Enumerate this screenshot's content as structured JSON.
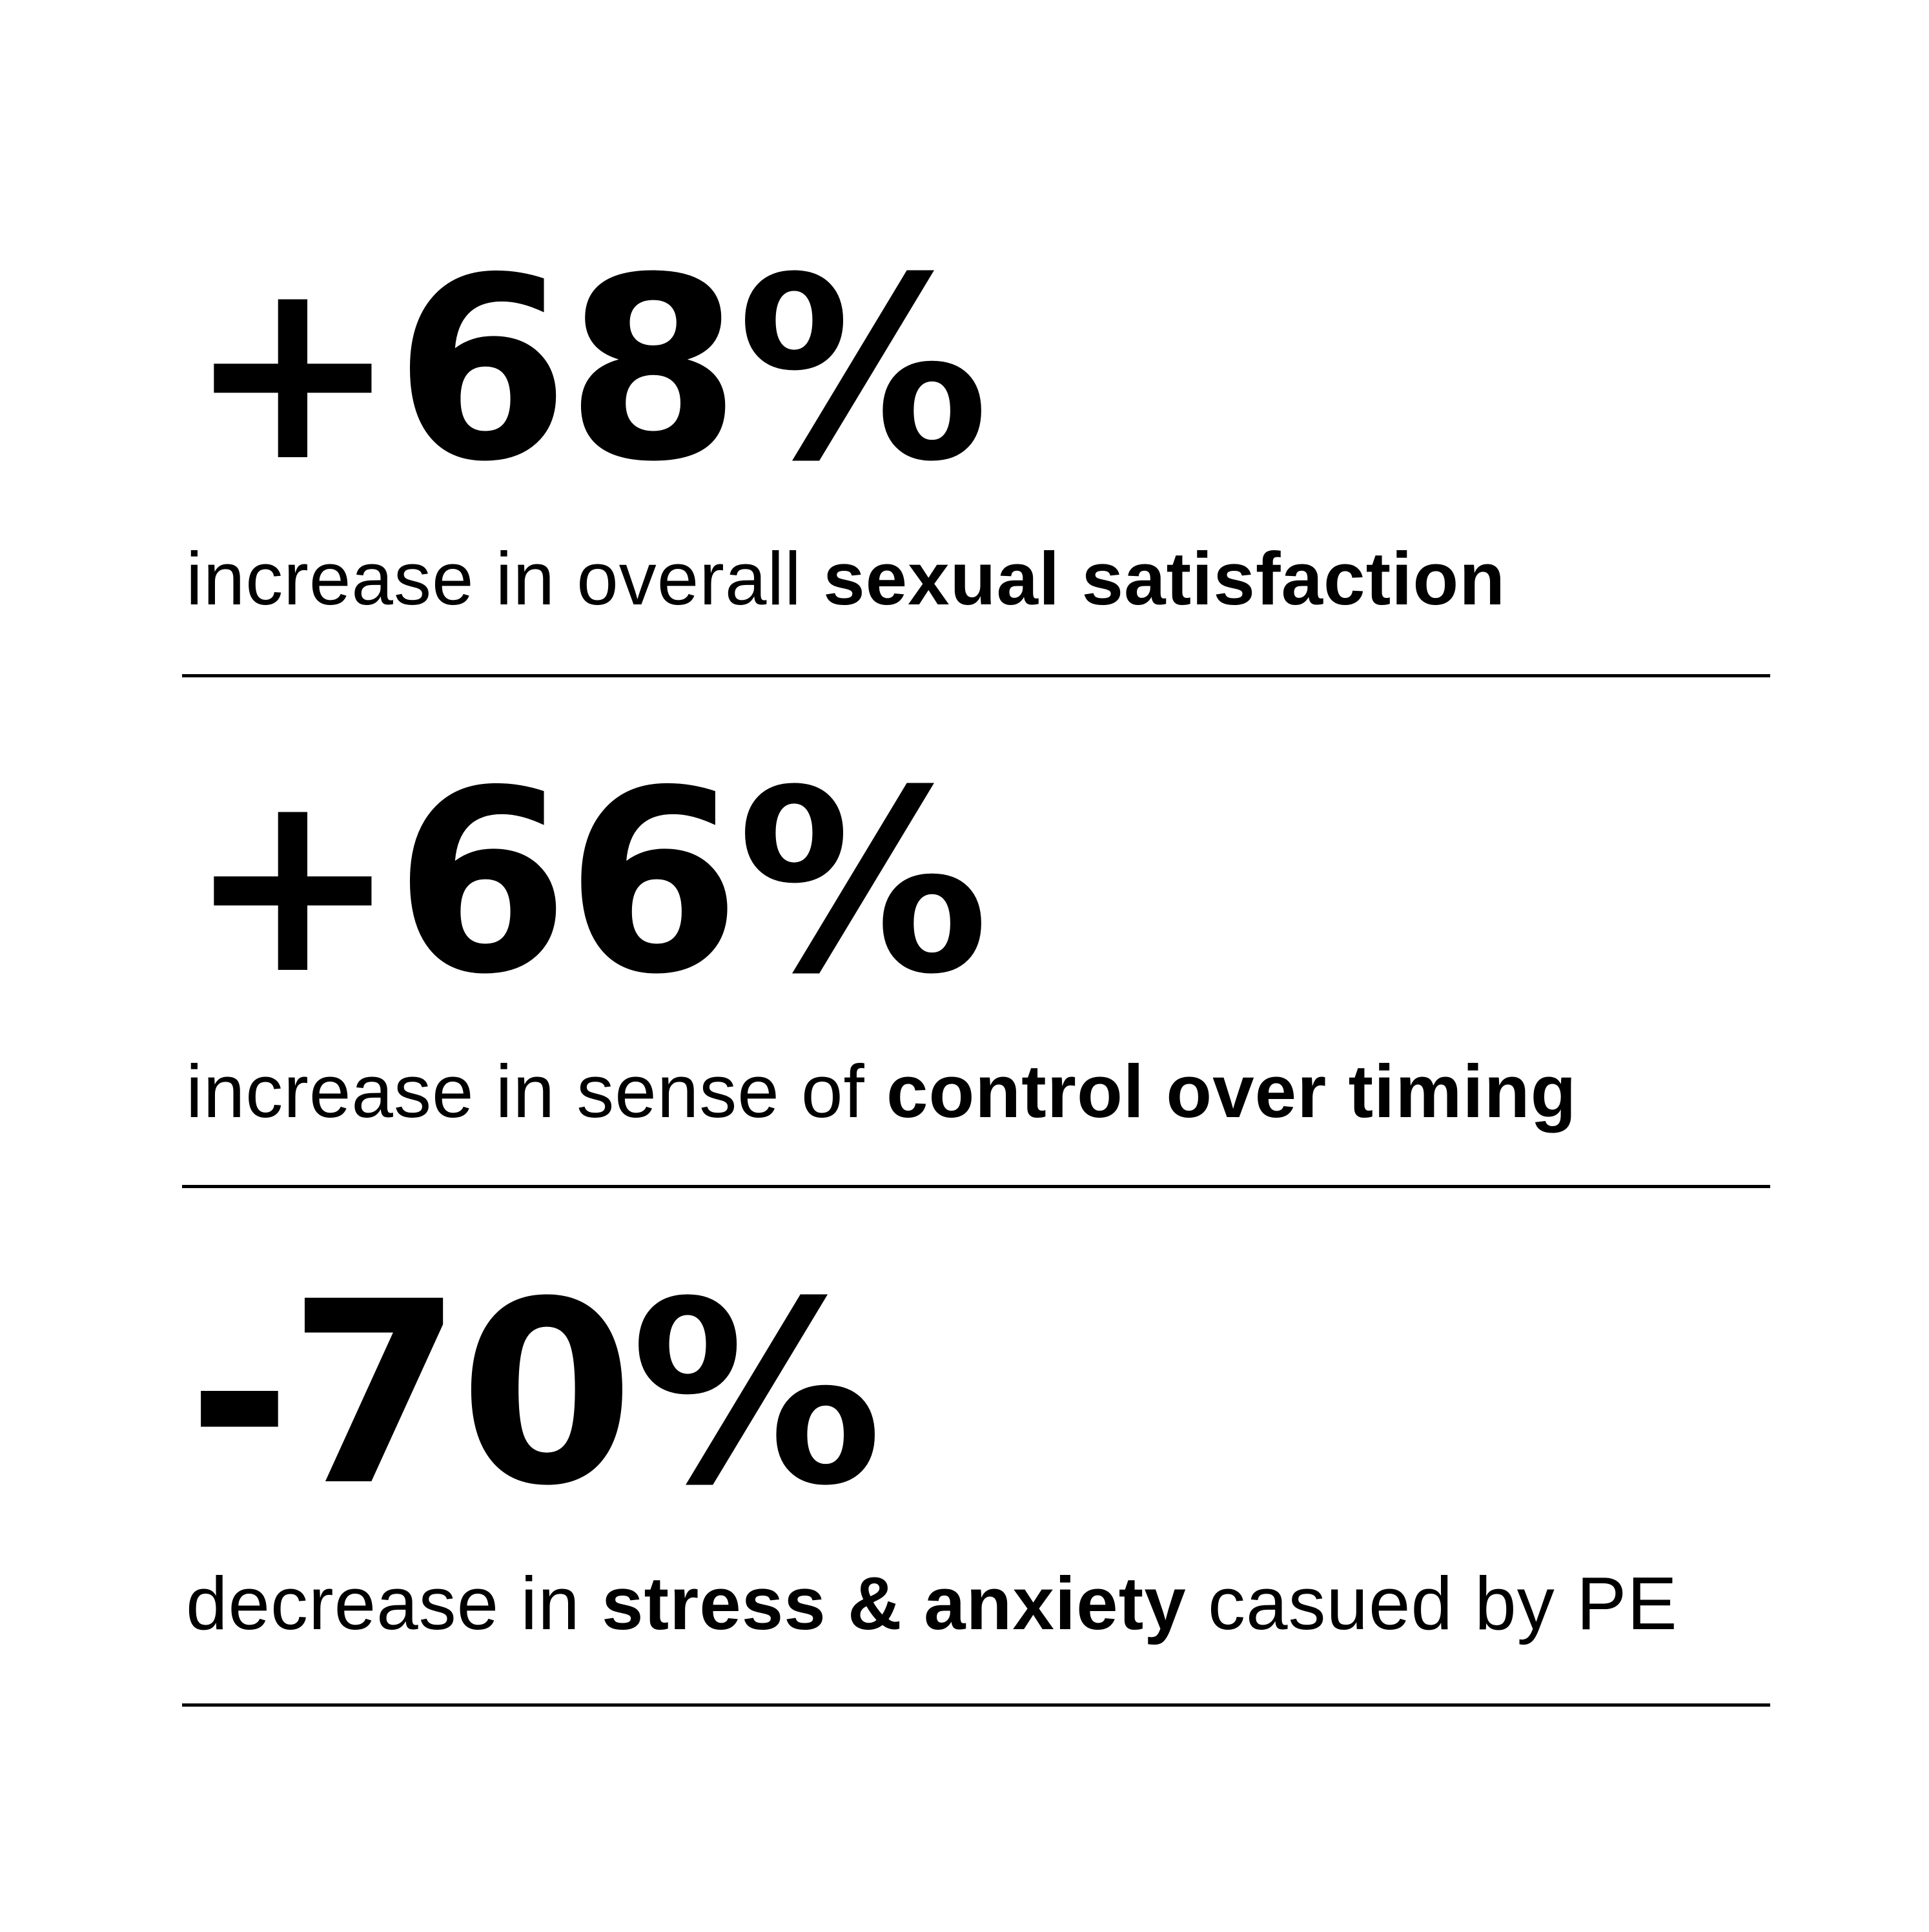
{
  "stats": [
    {
      "value": "+68%",
      "caption_pre": "increase in overall ",
      "caption_bold": "sexual satisfaction",
      "caption_post": ""
    },
    {
      "value": "+66%",
      "caption_pre": "increase in sense of ",
      "caption_bold": "control over timing",
      "caption_post": ""
    },
    {
      "value": "-70%",
      "caption_pre": "decrease in ",
      "caption_bold": "stress & anxiety",
      "caption_post": " casued by PE"
    }
  ],
  "colors": {
    "background": "#ffffff",
    "text": "#000000",
    "divider": "#000000"
  }
}
